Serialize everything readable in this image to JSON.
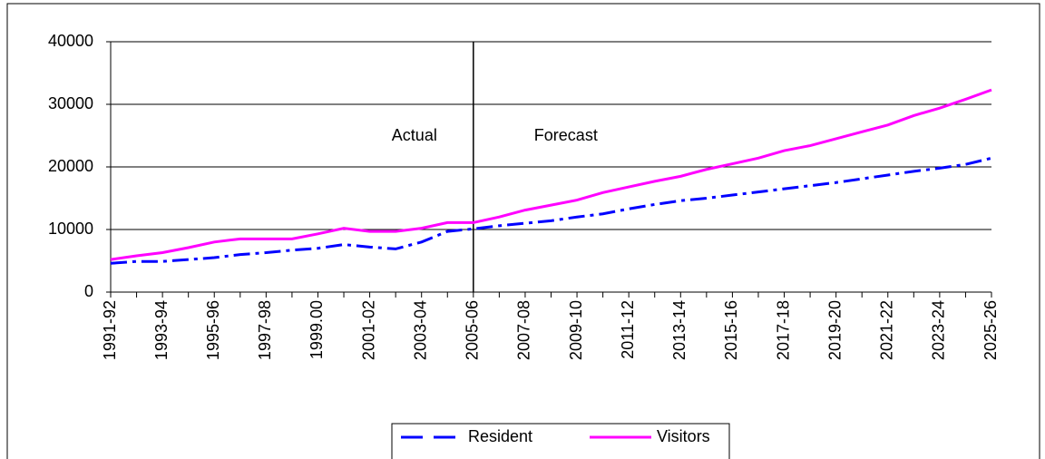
{
  "chart_data": {
    "type": "line",
    "categories": [
      "1991-92",
      null,
      "1993-94",
      null,
      "1995-96",
      null,
      "1997-98",
      null,
      "1999.00",
      null,
      "2001-02",
      null,
      "2003-04",
      null,
      "2005-06",
      null,
      "2007-08",
      null,
      "2009-10",
      null,
      "2011-12",
      null,
      "2013-14",
      null,
      "2015-16",
      null,
      "2017-18",
      null,
      "2019-20",
      null,
      "2021-22",
      null,
      "2023-24",
      null,
      "2025-26"
    ],
    "series": [
      {
        "name": "Resident",
        "color": "#0000ff",
        "dash": "dashdot",
        "values": [
          4600,
          4900,
          4900,
          5200,
          5500,
          6000,
          6300,
          6700,
          7000,
          7600,
          7200,
          6900,
          8000,
          9700,
          10100,
          10600,
          11000,
          11400,
          12000,
          12500,
          13300,
          14000,
          14600,
          15000,
          15500,
          16000,
          16500,
          17000,
          17500,
          18100,
          18700,
          19300,
          19800,
          20400,
          21400
        ]
      },
      {
        "name": "Visitors",
        "color": "#ff00ff",
        "dash": "solid",
        "values": [
          5200,
          5800,
          6300,
          7100,
          8000,
          8500,
          8500,
          8500,
          9300,
          10200,
          9700,
          9700,
          10200,
          11100,
          11100,
          12000,
          13100,
          13900,
          14700,
          15900,
          16800,
          17700,
          18500,
          19600,
          20500,
          21400,
          22600,
          23400,
          24500,
          25600,
          26700,
          28200,
          29400,
          30800,
          32300
        ]
      }
    ],
    "ylim": [
      0,
      40000
    ],
    "yticks": [
      0,
      10000,
      20000,
      30000,
      40000
    ],
    "grid": true,
    "split_at": "2005-06",
    "annotations": [
      {
        "text": "Actual"
      },
      {
        "text": "Forecast"
      }
    ],
    "legend": "bottom"
  }
}
